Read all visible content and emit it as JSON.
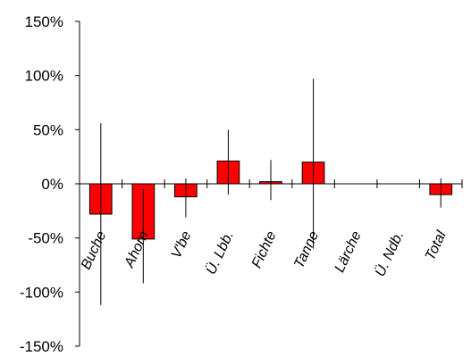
{
  "chart_data": {
    "type": "bar",
    "title": "",
    "xlabel": "",
    "ylabel": "",
    "ylim": [
      -150,
      150
    ],
    "y_ticks": [
      150,
      100,
      50,
      0,
      -50,
      -100,
      -150
    ],
    "y_tick_format": "percent",
    "grid": false,
    "legend": "none",
    "categories": [
      "Buche",
      "Ahorn",
      "V'be",
      "Ü. Lbb.",
      "Fichte",
      "Tanne",
      "Lärche",
      "Ü. Ndb.",
      "Total"
    ],
    "values": [
      -28,
      -51,
      -12,
      21,
      2,
      20,
      0,
      0,
      -10
    ],
    "error_low": [
      -112,
      -92,
      -31,
      -10,
      -15,
      -60,
      null,
      null,
      -22
    ],
    "error_high": [
      56,
      -5,
      5,
      50,
      22,
      97,
      null,
      null,
      5
    ],
    "bar_color": "#ff0000",
    "bar_edge_color": "#000000"
  }
}
